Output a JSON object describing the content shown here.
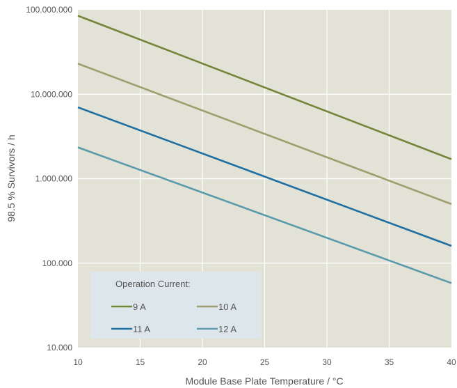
{
  "chart_data": {
    "type": "line",
    "title": "",
    "xlabel": "Module Base Plate Temperature / °C",
    "ylabel": "98.5 % Survivors / h",
    "xlim": [
      10,
      40
    ],
    "ylim": [
      10000,
      100000000
    ],
    "y_scale": "log",
    "x_ticks": [
      10,
      15,
      20,
      25,
      30,
      35,
      40
    ],
    "x_tick_labels": [
      "10",
      "15",
      "20",
      "25",
      "30",
      "35",
      "40"
    ],
    "y_ticks": [
      10000,
      100000,
      1000000,
      10000000,
      100000000
    ],
    "y_tick_labels": [
      "10.000",
      "100.000",
      "1.000.000",
      "10.000.000",
      "100.000.000"
    ],
    "grid": true,
    "legend": {
      "title": "Operation Current:",
      "placement": "bottom-left"
    },
    "series": [
      {
        "name": "9 A",
        "color": "#76843a",
        "x": [
          10,
          40
        ],
        "y": [
          85000000,
          1700000
        ]
      },
      {
        "name": "10 A",
        "color": "#9e9e6e",
        "x": [
          10,
          40
        ],
        "y": [
          23000000,
          500000
        ]
      },
      {
        "name": "11 A",
        "color": "#1f6fa3",
        "x": [
          10,
          40
        ],
        "y": [
          7000000,
          160000
        ]
      },
      {
        "name": "12 A",
        "color": "#5a9aab",
        "x": [
          10,
          40
        ],
        "y": [
          2350000,
          58000
        ]
      }
    ],
    "colors": {
      "plot_background": "#e2e2d6",
      "legend_background": "#dde6ea",
      "grid": "#ffffff"
    }
  }
}
